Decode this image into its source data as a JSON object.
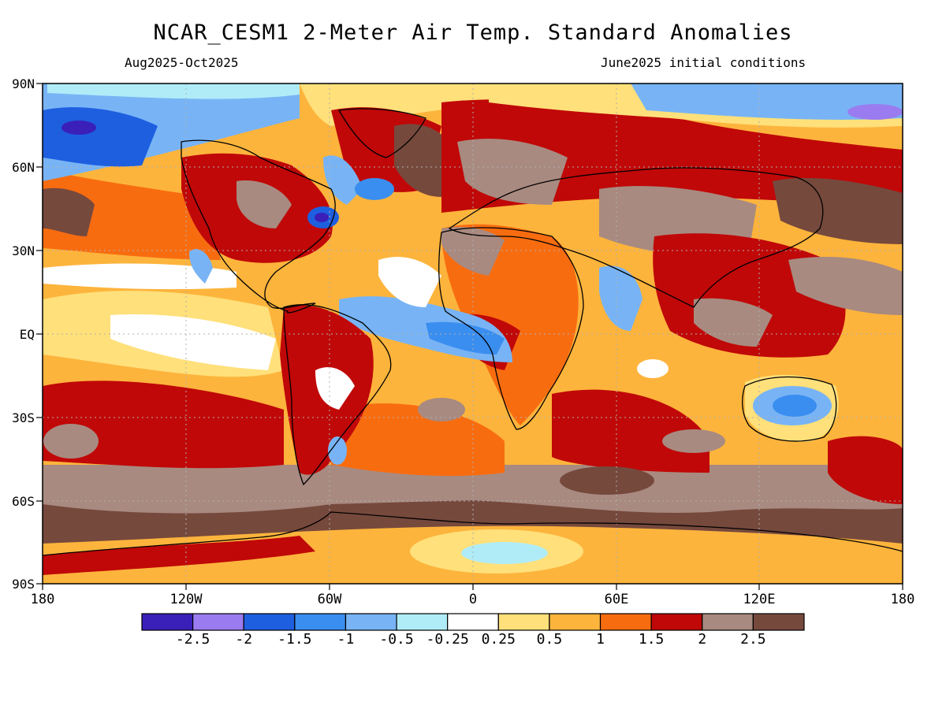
{
  "header": {
    "title": "NCAR_CESM1 2-Meter Air Temp. Standard Anomalies",
    "period": "Aug2025-Oct2025",
    "init": "June2025 initial conditions"
  },
  "axes": {
    "lat_labels": [
      "90N",
      "60N",
      "30N",
      "EQ",
      "30S",
      "60S",
      "90S"
    ],
    "lon_labels": [
      "180",
      "120W",
      "60W",
      "0",
      "60E",
      "120E",
      "180"
    ]
  },
  "colorbar": {
    "colors": [
      "#3a1fb8",
      "#9a7cf0",
      "#1e5fe0",
      "#3a8ef0",
      "#78b4f5",
      "#b0ecf8",
      "#ffffff",
      "#ffe07a",
      "#fdb43c",
      "#f86c10",
      "#c00808",
      "#a88a80",
      "#76493d"
    ],
    "labels": [
      "-2.5",
      "-2",
      "-1.5",
      "-1",
      "-0.5",
      "-0.25",
      "0.25",
      "0.5",
      "1",
      "1.5",
      "2",
      "2.5"
    ]
  },
  "palette": {
    "dark_blue": "#3a1fb8",
    "violet": "#9a7cf0",
    "blue": "#1e5fe0",
    "mid_blue": "#3a8ef0",
    "light_blue": "#78b4f5",
    "pale_blue": "#b0ecf8",
    "white": "#ffffff",
    "pale_yellow": "#ffe07a",
    "light_orange": "#fdb43c",
    "orange": "#f86c10",
    "red": "#c00808",
    "taupe": "#a88a80",
    "brown": "#76493d"
  }
}
